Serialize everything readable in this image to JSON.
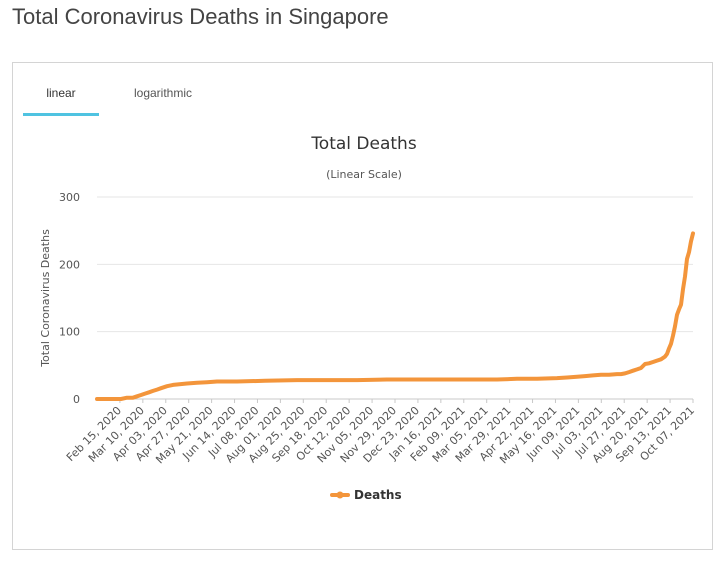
{
  "page": {
    "title": "Total Coronavirus Deaths in Singapore"
  },
  "tabs": [
    {
      "label": "linear",
      "active": true
    },
    {
      "label": "logarithmic",
      "active": false
    }
  ],
  "colors": {
    "series": "#f3953b",
    "tab_underline": "#4fc3e1",
    "grid": "#e6e6e6"
  },
  "chart_data": {
    "type": "line",
    "title": "Total Deaths",
    "subtitle": "(Linear Scale)",
    "xlabel": "",
    "ylabel": "Total Coronavirus Deaths",
    "ylim": [
      0,
      300
    ],
    "yticks": [
      0,
      100,
      200,
      300
    ],
    "grid": true,
    "legend": "bottom-center",
    "categories": [
      "Feb 15, 2020",
      "Mar 10, 2020",
      "Apr 03, 2020",
      "Apr 27, 2020",
      "May 21, 2020",
      "Jun 14, 2020",
      "Jul 08, 2020",
      "Aug 01, 2020",
      "Aug 25, 2020",
      "Sep 18, 2020",
      "Oct 12, 2020",
      "Nov 05, 2020",
      "Nov 29, 2020",
      "Dec 23, 2020",
      "Jan 16, 2021",
      "Feb 09, 2021",
      "Mar 05, 2021",
      "Mar 29, 2021",
      "Apr 22, 2021",
      "May 16, 2021",
      "Jun 09, 2021",
      "Jul 03, 2021",
      "Jul 27, 2021",
      "Aug 20, 2021",
      "Sep 13, 2021",
      "Oct 07, 2021"
    ],
    "series": [
      {
        "name": "Deaths",
        "x": [
          0,
          20,
          24,
          30,
          36,
          40,
          44,
          48,
          52,
          56,
          60,
          64,
          70,
          76,
          90,
          100,
          110,
          120,
          140,
          168,
          200,
          230,
          260,
          290,
          320,
          350,
          380,
          400,
          420,
          440,
          460,
          470,
          480,
          488,
          496,
          504,
          512,
          520,
          524,
          528,
          532,
          536,
          540,
          544,
          548,
          552,
          556,
          560,
          564,
          568,
          570,
          572,
          574,
          576,
          578,
          580,
          582,
          584,
          586,
          588,
          590,
          592,
          594,
          596
        ],
        "values": [
          0,
          0,
          0,
          2,
          2,
          4,
          6,
          8,
          10,
          12,
          14,
          16,
          19,
          21,
          23,
          24,
          25,
          26,
          26,
          27,
          28,
          28,
          28,
          29,
          29,
          29,
          29,
          29,
          30,
          30,
          31,
          32,
          33,
          34,
          35,
          36,
          36,
          37,
          37,
          38,
          40,
          42,
          44,
          46,
          52,
          53,
          55,
          57,
          59,
          63,
          67,
          75,
          82,
          94,
          108,
          125,
          133,
          140,
          163,
          182,
          208,
          218,
          234,
          246
        ]
      }
    ]
  }
}
